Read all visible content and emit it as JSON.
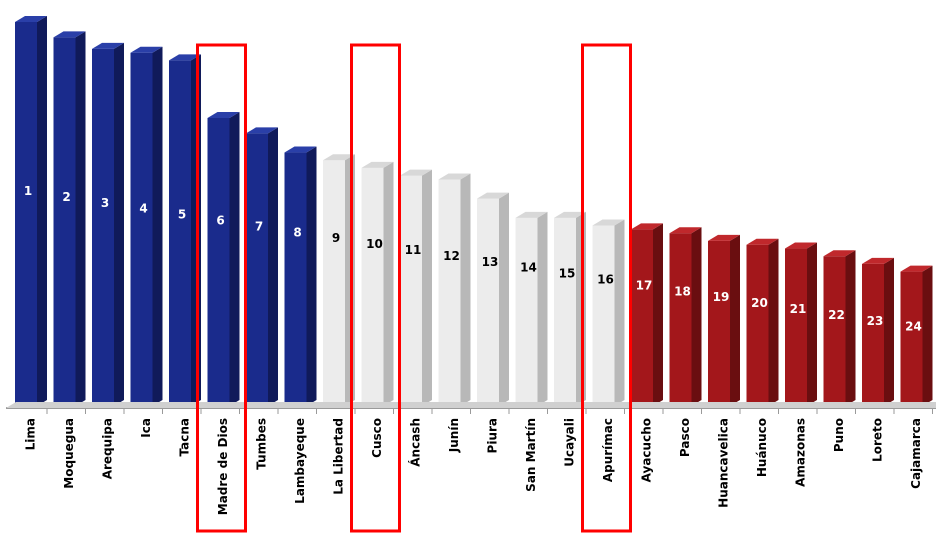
{
  "chart_data": {
    "type": "bar",
    "categories": [
      "Lima",
      "Moquegua",
      "Arequipa",
      "Ica",
      "Tacna",
      "Madre de Dios",
      "Tumbes",
      "Lambayeque",
      "La Libertad",
      "Cusco",
      "Áncash",
      "Junín",
      "Piura",
      "San Martín",
      "Ucayali",
      "Apurímac",
      "Ayacucho",
      "Pasco",
      "Huancavelica",
      "Huánuco",
      "Amazonas",
      "Puno",
      "Loreto",
      "Cajamarca"
    ],
    "values": [
      100,
      96,
      93,
      92,
      90,
      75,
      71,
      66,
      64,
      62,
      60,
      59,
      54,
      49,
      49,
      47,
      46,
      45,
      43,
      42,
      41,
      39,
      37,
      35
    ],
    "data_labels": [
      "1",
      "2",
      "3",
      "4",
      "5",
      "6",
      "7",
      "8",
      "9",
      "10",
      "11",
      "12",
      "13",
      "14",
      "15",
      "16",
      "17",
      "18",
      "19",
      "20",
      "21",
      "22",
      "23",
      "24"
    ],
    "groups": [
      "blue",
      "blue",
      "blue",
      "blue",
      "blue",
      "blue",
      "blue",
      "blue",
      "gray",
      "gray",
      "gray",
      "gray",
      "gray",
      "gray",
      "gray",
      "gray",
      "red",
      "red",
      "red",
      "red",
      "red",
      "red",
      "red",
      "red"
    ],
    "colors": {
      "blue": {
        "front": "#1a2b8c",
        "side": "#101a5a",
        "top": "#2a3fa8",
        "label": "#ffffff"
      },
      "gray": {
        "front": "#ececec",
        "side": "#b8b8b8",
        "top": "#d8d8d8",
        "label": "#000000"
      },
      "red": {
        "front": "#a3171b",
        "side": "#6a0e10",
        "top": "#c0282c",
        "label": "#ffffff"
      },
      "highlight": "#ff0000",
      "axis": "#9a9a9a"
    },
    "highlighted": [
      "Madre de Dios",
      "Cusco",
      "Apurímac"
    ],
    "ylim": [
      0,
      100
    ],
    "grid": false,
    "title": "",
    "xlabel": "",
    "ylabel": ""
  }
}
